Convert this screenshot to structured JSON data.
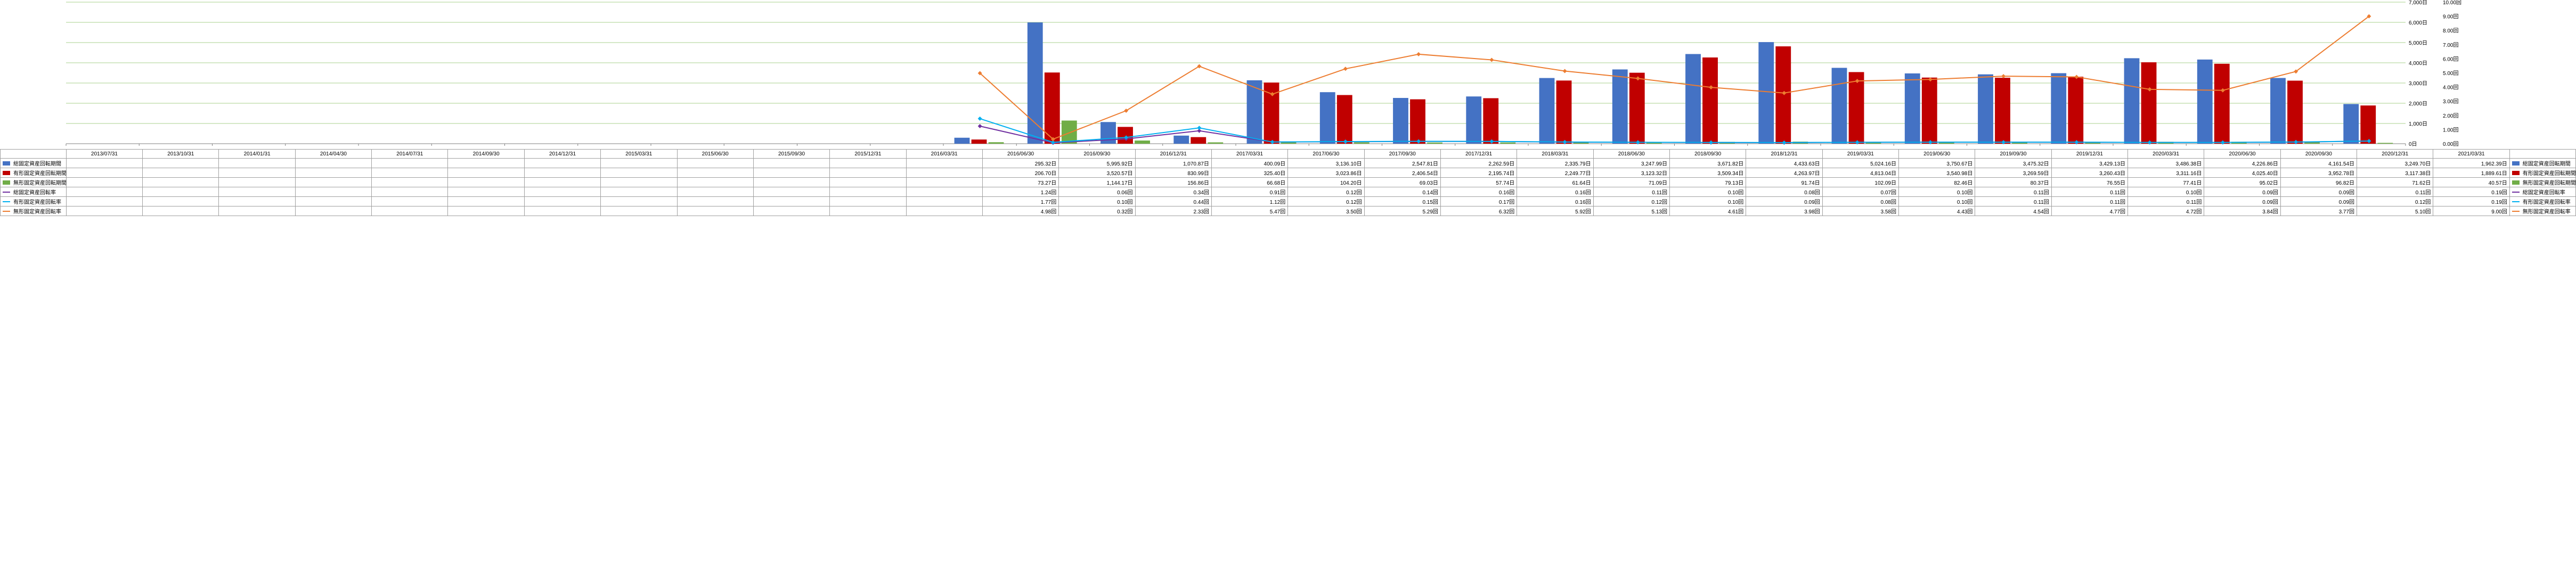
{
  "chart": {
    "categories": [
      "2013/07/31",
      "2013/10/31",
      "2014/01/31",
      "2014/04/30",
      "2014/07/31",
      "2014/09/30",
      "2014/12/31",
      "2015/03/31",
      "2015/06/30",
      "2015/09/30",
      "2015/12/31",
      "2016/03/31",
      "2016/06/30",
      "2016/09/30",
      "2016/12/31",
      "2017/03/31",
      "2017/06/30",
      "2017/09/30",
      "2017/12/31",
      "2018/03/31",
      "2018/06/30",
      "2018/09/30",
      "2018/12/31",
      "2019/03/31",
      "2019/06/30",
      "2019/09/30",
      "2019/12/31",
      "2020/03/31",
      "2020/06/30",
      "2020/09/30",
      "2020/12/31",
      "2021/03/31"
    ],
    "left_axis": {
      "min": 0,
      "max": 7000,
      "step": 1000,
      "unit": "日"
    },
    "right_axis": {
      "min": 0,
      "max": 10,
      "step": 1,
      "unit": "回"
    },
    "grid_color": "#a8d08d",
    "bar_colors": {
      "s1": "#4472c4",
      "s2": "#c00000",
      "s3": "#70ad47"
    },
    "line_colors": {
      "s4": "#7030a0",
      "s5": "#00b0f0",
      "s6": "#ed7d31"
    },
    "background_color": "#ffffff",
    "font_size": 10,
    "series": [
      {
        "key": "s1",
        "type": "bar",
        "axis": "left",
        "unit": "日",
        "label": "総固定資産回転期間",
        "values": [
          null,
          null,
          null,
          null,
          null,
          null,
          null,
          null,
          null,
          null,
          null,
          null,
          295.32,
          5995.92,
          1070.87,
          400.09,
          3136.1,
          2547.81,
          2262.59,
          2335.79,
          3247.99,
          3671.82,
          4433.63,
          5024.16,
          3750.67,
          3475.32,
          3429.13,
          3486.38,
          4226.86,
          4161.54,
          3249.7,
          1962.39
        ]
      },
      {
        "key": "s2",
        "type": "bar",
        "axis": "left",
        "unit": "日",
        "label": "有形固定資産回転期間",
        "values": [
          null,
          null,
          null,
          null,
          null,
          null,
          null,
          null,
          null,
          null,
          null,
          null,
          206.7,
          3520.57,
          830.99,
          325.4,
          3023.86,
          2406.54,
          2195.74,
          2249.77,
          3123.32,
          3509.34,
          4263.97,
          4813.04,
          3540.98,
          3269.59,
          3260.43,
          3311.16,
          4025.4,
          3952.78,
          3117.38,
          1889.61
        ]
      },
      {
        "key": "s3",
        "type": "bar",
        "axis": "left",
        "unit": "日",
        "label": "無形固定資産回転期間",
        "values": [
          null,
          null,
          null,
          null,
          null,
          null,
          null,
          null,
          null,
          null,
          null,
          null,
          73.27,
          1144.17,
          156.86,
          66.68,
          104.2,
          69.03,
          57.74,
          61.64,
          71.09,
          79.13,
          91.74,
          102.09,
          82.46,
          80.37,
          76.55,
          77.41,
          95.02,
          96.82,
          71.62,
          40.57
        ]
      },
      {
        "key": "s4",
        "type": "line",
        "axis": "right",
        "unit": "回",
        "label": "総固定資産回転率",
        "values": [
          null,
          null,
          null,
          null,
          null,
          null,
          null,
          null,
          null,
          null,
          null,
          null,
          1.24,
          0.06,
          0.34,
          0.91,
          0.12,
          0.14,
          0.16,
          0.16,
          0.11,
          0.1,
          0.08,
          0.07,
          0.1,
          0.11,
          0.11,
          0.1,
          0.09,
          0.09,
          0.11,
          0.19
        ]
      },
      {
        "key": "s5",
        "type": "line",
        "axis": "right",
        "unit": "回",
        "label": "有形固定資産回転率",
        "values": [
          null,
          null,
          null,
          null,
          null,
          null,
          null,
          null,
          null,
          null,
          null,
          null,
          1.77,
          0.1,
          0.44,
          1.12,
          0.12,
          0.15,
          0.17,
          0.16,
          0.12,
          0.1,
          0.09,
          0.08,
          0.1,
          0.11,
          0.11,
          0.11,
          0.09,
          0.09,
          0.12,
          0.19
        ]
      },
      {
        "key": "s6",
        "type": "line",
        "axis": "right",
        "unit": "回",
        "label": "無形固定資産回転率",
        "values": [
          null,
          null,
          null,
          null,
          null,
          null,
          null,
          null,
          null,
          null,
          null,
          null,
          4.98,
          0.32,
          2.33,
          5.47,
          3.5,
          5.29,
          6.32,
          5.92,
          5.13,
          4.61,
          3.98,
          3.58,
          4.43,
          4.54,
          4.77,
          4.72,
          3.84,
          3.77,
          5.1,
          9.0
        ]
      }
    ]
  }
}
